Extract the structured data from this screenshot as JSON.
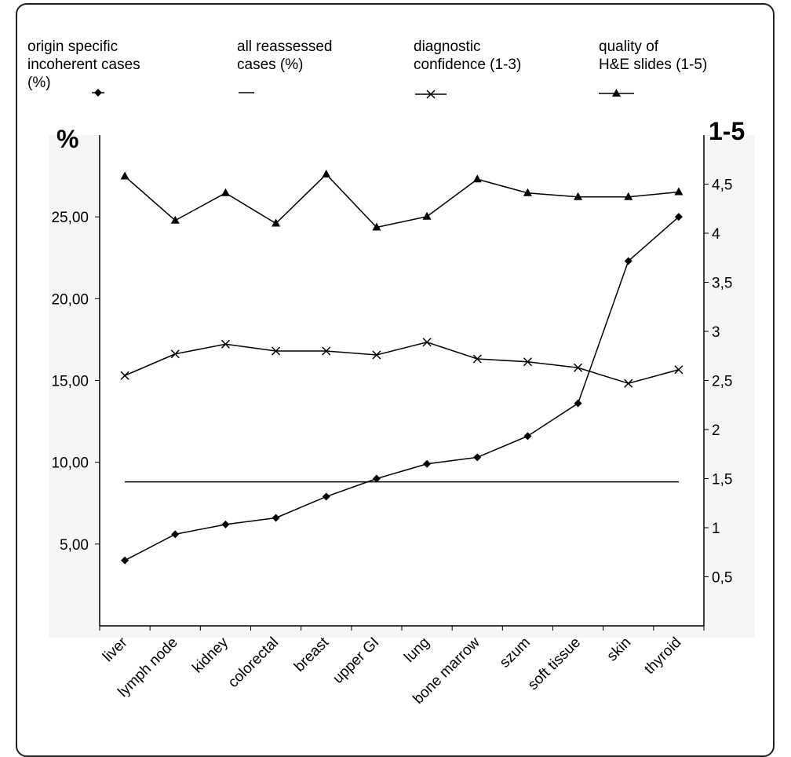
{
  "chart_data": {
    "type": "line",
    "categories": [
      "liver",
      "lymph node",
      "kidney",
      "colorectal",
      "breast",
      "upper GI",
      "lung",
      "bone marrow",
      "szum",
      "soft tissue",
      "skin",
      "thyroid"
    ],
    "series": [
      {
        "name": "origin specific incoherent cases (%)",
        "axis": "left",
        "marker": "diamond",
        "values": [
          4.0,
          5.6,
          6.2,
          6.6,
          7.9,
          9.0,
          9.9,
          10.3,
          11.6,
          13.6,
          22.3,
          25.0
        ]
      },
      {
        "name": "all reassessed cases (%)",
        "axis": "left",
        "marker": "none",
        "values": [
          8.8,
          8.8,
          8.8,
          8.8,
          8.8,
          8.8,
          8.8,
          8.8,
          8.8,
          8.8,
          8.8,
          8.8
        ]
      },
      {
        "name": "diagnostic confidence (1-3)",
        "axis": "right",
        "marker": "x",
        "values": [
          2.55,
          2.77,
          2.87,
          2.8,
          2.8,
          2.76,
          2.89,
          2.72,
          2.69,
          2.63,
          2.47,
          2.61
        ]
      },
      {
        "name": "quality of H&E slides (1-5)",
        "axis": "right",
        "marker": "triangle",
        "values": [
          4.58,
          4.13,
          4.41,
          4.1,
          4.6,
          4.06,
          4.17,
          4.55,
          4.41,
          4.37,
          4.37,
          4.42
        ]
      }
    ],
    "y_left": {
      "label": "%",
      "ylim": [
        0,
        30
      ],
      "ticks": [
        "5,00",
        "10,00",
        "15,00",
        "20,00",
        "25,00"
      ],
      "tick_values": [
        5,
        10,
        15,
        20,
        25
      ]
    },
    "y_right": {
      "label": "1-5",
      "ylim": [
        0,
        5
      ],
      "ticks": [
        "0,5",
        "1",
        "1,5",
        "2",
        "2,5",
        "3",
        "3,5",
        "4",
        "4,5"
      ],
      "tick_values": [
        0.5,
        1,
        1.5,
        2,
        2.5,
        3,
        3.5,
        4,
        4.5
      ]
    },
    "legend": {
      "placement": "top",
      "items": [
        {
          "label": "origin specific\nincoherent cases\n(%)",
          "marker": "diamond"
        },
        {
          "label": "all reassessed\ncases (%)",
          "marker": "none"
        },
        {
          "label": "diagnostic\nconfidence (1-3)",
          "marker": "x"
        },
        {
          "label": "quality of\nH&E slides (1-5)",
          "marker": "triangle"
        }
      ]
    },
    "grid": false
  }
}
